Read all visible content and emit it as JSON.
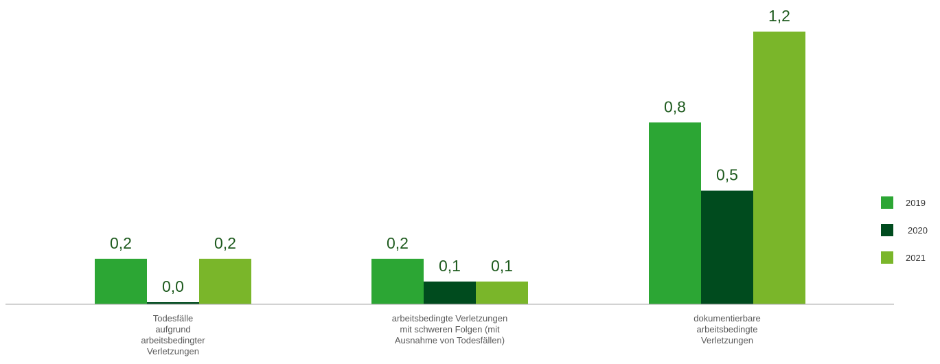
{
  "chart_data": {
    "type": "bar",
    "categories": [
      [
        "Todesfälle",
        "aufgrund",
        "arbeitsbedingter",
        "Verletzungen"
      ],
      [
        "arbeitsbedingte Verletzungen",
        "mit schweren Folgen (mit",
        "Ausnahme von Todesfällen)"
      ],
      [
        "dokumentierbare",
        "arbeitsbedingte",
        "Verletzungen"
      ]
    ],
    "series": [
      {
        "name": "2019",
        "color": "#2ca634",
        "values": [
          0.2,
          0.2,
          0.8
        ],
        "labels": [
          "0,2",
          "0,2",
          "0,8"
        ]
      },
      {
        "name": "2020",
        "color": "#004b1e",
        "values": [
          0.0,
          0.1,
          0.5
        ],
        "labels": [
          "0,0",
          "0,1",
          "0,5"
        ]
      },
      {
        "name": "2021",
        "color": "#7ab62a",
        "values": [
          0.2,
          0.1,
          1.2
        ],
        "labels": [
          "0,2",
          "0,1",
          "1,2"
        ]
      }
    ],
    "ylim": [
      0,
      1.2
    ],
    "grid": false,
    "legend_position": "right",
    "value_label_color": "#1d5a1d",
    "axis_color": "#a6a6a6"
  }
}
